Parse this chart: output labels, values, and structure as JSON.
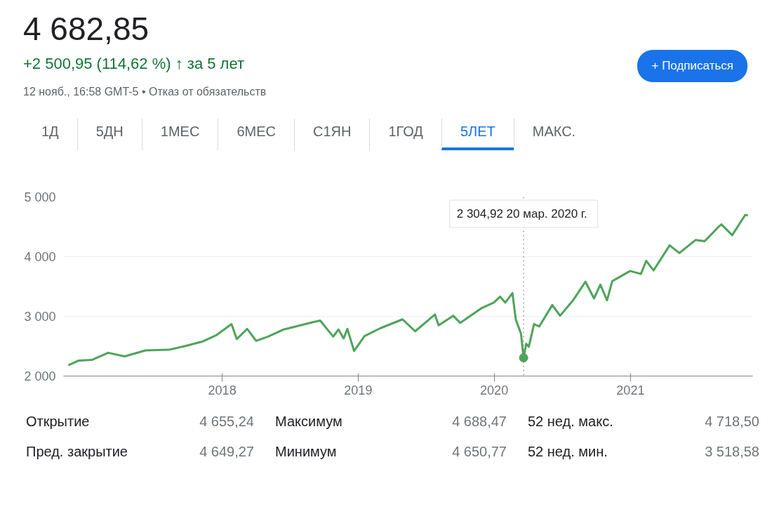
{
  "chart_data": {
    "type": "line",
    "title": "4 682,85",
    "subtitle": "+2 500,95 (114,62 %) ↑ за 5 лет",
    "annotations": [
      "12 нояб., 16:58 GMT-5 • Отказ от обязательств",
      "+ Подписаться",
      "1Д",
      "5ДН",
      "1МЕС",
      "6МЕС",
      "С1ЯН",
      "1ГОД",
      "5ЛЕТ",
      "МАКС.",
      "Открытие",
      "4 655,24",
      "Максимум",
      "4 688,47",
      "52 нед. макс.",
      "4 718,50",
      "Пред. закрытие",
      "4 649,27",
      "Минимум",
      "4 650,77",
      "52 нед. мин.",
      "3 518,58",
      "2 304,92  20 мар. 2020 г."
    ],
    "x": [
      "2016-11-14",
      "2016-12-12",
      "2017-01-16",
      "2017-03-01",
      "2017-04-14",
      "2017-06-09",
      "2017-08-11",
      "2017-09-22",
      "2017-11-10",
      "2017-12-15",
      "2018-01-26",
      "2018-02-09",
      "2018-03-09",
      "2018-04-02",
      "2018-05-04",
      "2018-06-15",
      "2018-08-31",
      "2018-09-21",
      "2018-10-26",
      "2018-11-09",
      "2018-11-23",
      "2018-12-03",
      "2018-12-21",
      "2019-01-18",
      "2019-03-01",
      "2019-04-30",
      "2019-06-03",
      "2019-07-26",
      "2019-08-05",
      "2019-09-13",
      "2019-10-02",
      "2019-11-29",
      "2019-12-31",
      "2020-01-17",
      "2020-01-31",
      "2020-02-19",
      "2020-02-28",
      "2020-03-13",
      "2020-03-20",
      "2020-03-27",
      "2020-04-03",
      "2020-04-17",
      "2020-05-01",
      "2020-06-05",
      "2020-06-26",
      "2020-07-31",
      "2020-09-02",
      "2020-09-25",
      "2020-10-12",
      "2020-10-30",
      "2020-11-13",
      "2020-12-31",
      "2021-01-29",
      "2021-02-12",
      "2021-03-04",
      "2021-04-16",
      "2021-05-12",
      "2021-06-25",
      "2021-07-19",
      "2021-08-27",
      "2021-09-02",
      "2021-10-01",
      "2021-11-05",
      "2021-11-12"
    ],
    "series": [
      {
        "color": "#4ea45a",
        "values": [
          2180,
          2260,
          2270,
          2390,
          2330,
          2430,
          2440,
          2500,
          2580,
          2680,
          2870,
          2620,
          2790,
          2590,
          2660,
          2780,
          2900,
          2930,
          2660,
          2780,
          2630,
          2790,
          2420,
          2670,
          2800,
          2950,
          2750,
          3030,
          2850,
          3010,
          2890,
          3140,
          3230,
          3330,
          3230,
          3390,
          2950,
          2710,
          2304.92,
          2540,
          2490,
          2870,
          2830,
          3190,
          3010,
          3270,
          3580,
          3300,
          3530,
          3270,
          3590,
          3760,
          3710,
          3930,
          3770,
          4190,
          4060,
          4280,
          4260,
          4510,
          4540,
          4360,
          4700,
          4690
        ]
      },
      {
        "type": "scatter",
        "marker": "circle",
        "color": "#4ea45a",
        "x": [
          "2020-03-20"
        ],
        "values": [
          2304.92
        ]
      }
    ],
    "ref_lines": [
      {
        "axis": "x",
        "value": "2020-03-20",
        "color": "#777777",
        "line_style": "dotted"
      }
    ],
    "xlim": [
      "2016-11-01",
      "2021-11-25"
    ],
    "xticks": [
      {
        "value": "2018-01-01",
        "label": "2018"
      },
      {
        "value": "2019-01-01",
        "label": "2019"
      },
      {
        "value": "2020-01-01",
        "label": "2020"
      },
      {
        "value": "2021-01-01",
        "label": "2021"
      }
    ],
    "ylim": [
      2000,
      5000
    ],
    "yticks": [
      {
        "value": 2000,
        "label": "2 000"
      },
      {
        "value": 3000,
        "label": "3 000"
      },
      {
        "value": 4000,
        "label": "4 000"
      },
      {
        "value": 5000,
        "label": "5 000"
      }
    ],
    "grid": "y",
    "line_style": "solid"
  }
}
